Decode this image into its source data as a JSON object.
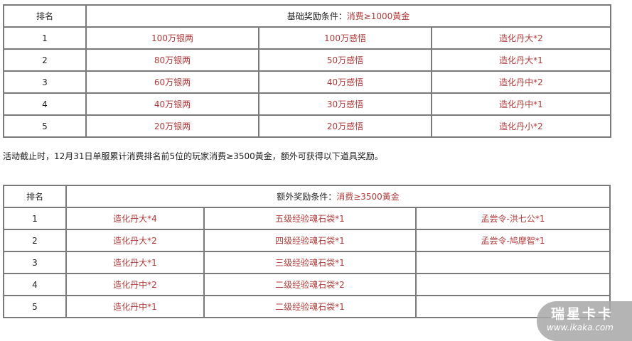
{
  "table1": {
    "rank_header": "排名",
    "condition_label": "基础奖励条件：",
    "condition_value": "消费≥1000黃金",
    "rows": [
      {
        "rank": "1",
        "c1": "100万银两",
        "c2": "100万感悟",
        "c3": "造化丹大*2"
      },
      {
        "rank": "2",
        "c1": "80万银两",
        "c2": "50万感悟",
        "c3": "造化丹大*1"
      },
      {
        "rank": "3",
        "c1": "60万银两",
        "c2": "40万感悟",
        "c3": "造化丹中*2"
      },
      {
        "rank": "4",
        "c1": "40万银两",
        "c2": "30万感悟",
        "c3": "造化丹中*1"
      },
      {
        "rank": "5",
        "c1": "20万银两",
        "c2": "20万感悟",
        "c3": "造化丹小*2"
      }
    ]
  },
  "note": "活动截止时，12月31日单服累计消费排名前5位的玩家消费≥3500黃金，额外可获得以下道具奖励。",
  "table2": {
    "rank_header": "排名",
    "condition_label": "额外奖励条件：",
    "condition_value": "消费≥3500黃金",
    "rows": [
      {
        "rank": "1",
        "c1": "造化丹大*4",
        "c2": "五级经验魂石袋*1",
        "c3": "孟尝令-洪七公*1"
      },
      {
        "rank": "2",
        "c1": "造化丹大*2",
        "c2": "四级经验魂石袋*1",
        "c3": "孟尝令-鸠摩智*1"
      },
      {
        "rank": "3",
        "c1": "造化丹大*1",
        "c2": "三级经验魂石袋*1",
        "c3": ""
      },
      {
        "rank": "4",
        "c1": "造化丹中*2",
        "c2": "二级经验魂石袋*2",
        "c3": ""
      },
      {
        "rank": "5",
        "c1": "造化丹中*1",
        "c2": "二级经验魂石袋*1",
        "c3": ""
      }
    ]
  },
  "watermark": {
    "title": "瑞星卡卡",
    "url": "www.ikaka.com"
  }
}
